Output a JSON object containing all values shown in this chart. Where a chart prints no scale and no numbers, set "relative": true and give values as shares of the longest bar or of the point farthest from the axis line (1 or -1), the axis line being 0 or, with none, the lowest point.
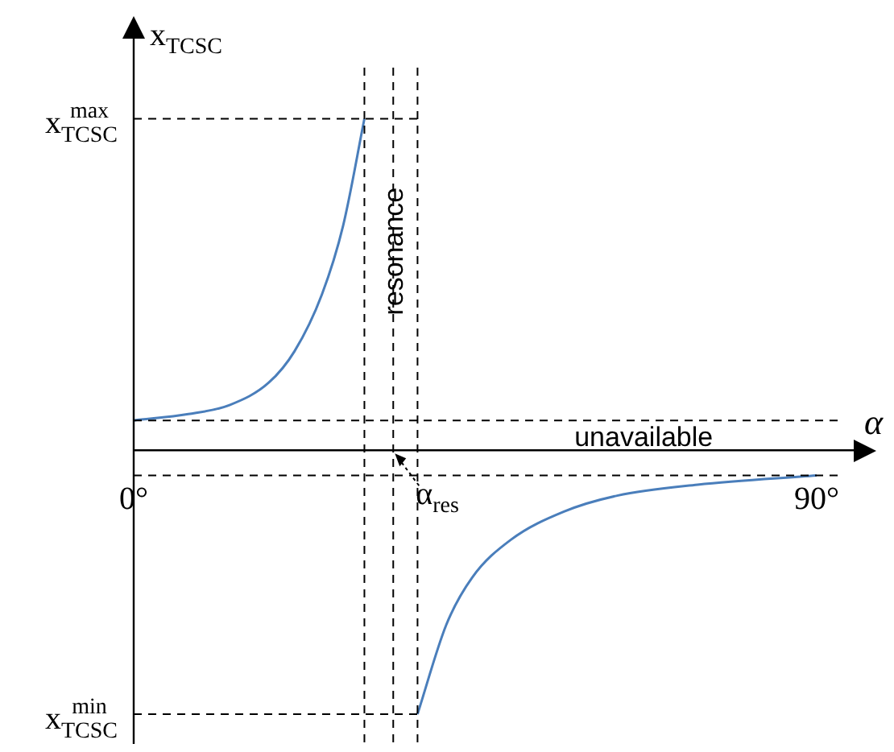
{
  "chart_data": {
    "type": "line",
    "relative": true,
    "xlabel": "α",
    "ylabel": "x$_{TCSC}$",
    "xlim": [
      0,
      97
    ],
    "xticks": [
      {
        "value": 0,
        "label": "0°"
      },
      {
        "value": 90,
        "label": "90°"
      }
    ],
    "series": [
      {
        "color": "#4a7ebb",
        "x": [
          0,
          7.2,
          12.7,
          17.8,
          21.2,
          24.8,
          27.6,
          30.4
        ],
        "values": [
          0.09,
          0.109,
          0.137,
          0.204,
          0.299,
          0.47,
          0.678,
          1
        ]
      },
      {
        "color": "#4a7ebb",
        "x": [
          37.4,
          41.2,
          44.6,
          49.7,
          56.7,
          63.7,
          74.3,
          90
        ],
        "values": [
          -0.796,
          -0.526,
          -0.384,
          -0.27,
          -0.185,
          -0.137,
          -0.104,
          -0.076
        ]
      }
    ],
    "ref_lines": [
      {
        "axis": "y",
        "value": 1,
        "label": "x$^{max}$$_{TCSC}$",
        "line_style": "dashed"
      },
      {
        "axis": "y",
        "value": -0.796,
        "label": "x$^{min}$$_{TCSC}$",
        "line_style": "dashed"
      },
      {
        "axis": "y",
        "value": 0.09,
        "line_style": "dashed"
      },
      {
        "axis": "y",
        "value": -0.076,
        "line_style": "dashed"
      },
      {
        "axis": "x",
        "value": 30.4,
        "line_style": "dashed"
      },
      {
        "axis": "x",
        "value": 34.2,
        "label": "α$_{res}$",
        "line_style": "dashed"
      },
      {
        "axis": "x",
        "value": 37.4,
        "line_style": "dashed"
      }
    ],
    "annotations": [
      {
        "text": "resonance",
        "x": 34.2,
        "y": 0.6
      },
      "unavailable"
    ],
    "grid": false,
    "legend": false,
    "marker": "none",
    "line_style": "solid"
  }
}
